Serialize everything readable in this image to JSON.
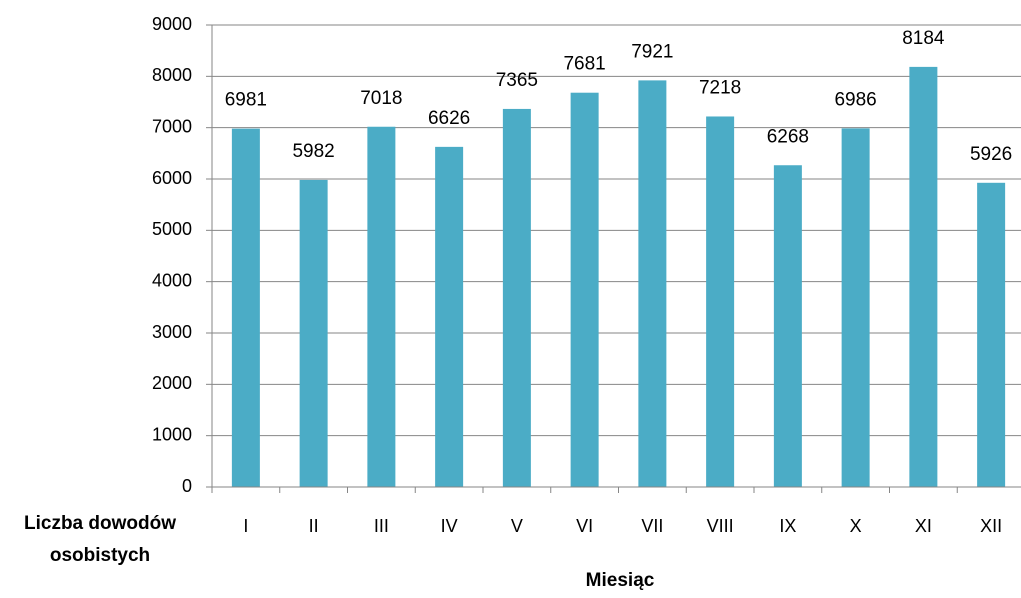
{
  "chart_data": {
    "type": "bar",
    "categories": [
      "I",
      "II",
      "III",
      "IV",
      "V",
      "VI",
      "VII",
      "VIII",
      "IX",
      "X",
      "XI",
      "XII"
    ],
    "values": [
      6981,
      5982,
      7018,
      6626,
      7365,
      7681,
      7921,
      7218,
      6268,
      6986,
      8184,
      5926
    ],
    "color": "#4bacc6",
    "ylim": [
      0,
      9000
    ],
    "yticks": [
      0,
      1000,
      2000,
      3000,
      4000,
      5000,
      6000,
      7000,
      8000,
      9000
    ],
    "grid": true,
    "x_label": "Miesiąc",
    "y_label": "Liczba dowodów osobistych"
  }
}
